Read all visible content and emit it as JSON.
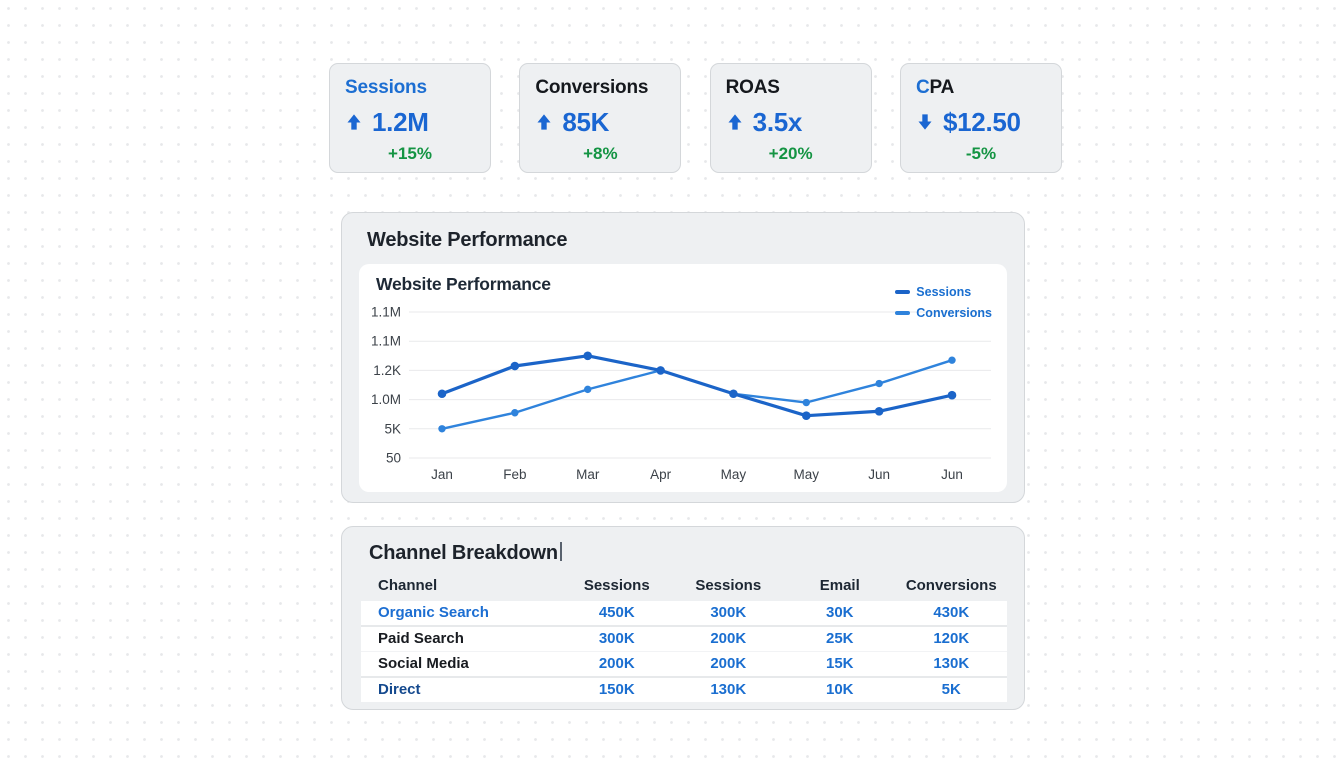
{
  "colors": {
    "accent_blue": "#1c6ed2",
    "kpi_value_blue": "#1a66d2",
    "delta_green": "#149443",
    "dark_text": "#15181d",
    "legend_text_blue": "#1a6fd0",
    "table_value_blue": "#1a6ed0"
  },
  "kpi_cards": [
    {
      "title_parts": [
        {
          "text": "Sessions",
          "color": "#1c6ed2"
        }
      ],
      "arrow": "up",
      "value": "1.2M",
      "delta": "+15%"
    },
    {
      "title_parts": [
        {
          "text": "Conversions",
          "color": "#15181d"
        }
      ],
      "arrow": "up",
      "value": "85K",
      "delta": "+8%"
    },
    {
      "title_parts": [
        {
          "text": "ROAS",
          "color": "#15181d"
        }
      ],
      "arrow": "up",
      "value": "3.5x",
      "delta": "+20%"
    },
    {
      "title_parts": [
        {
          "text": "C",
          "color": "#1c6ed2"
        },
        {
          "text": "PA",
          "color": "#15181d"
        }
      ],
      "arrow": "down",
      "value": "$12.50",
      "delta": "-5%"
    }
  ],
  "performance_section": {
    "title": "Website Performance"
  },
  "chart_data": {
    "type": "line",
    "title": "Website Performance",
    "x": [
      "Jan",
      "Feb",
      "Mar",
      "Apr",
      "May",
      "May",
      "Jun",
      "Jun"
    ],
    "y_tick_labels": [
      "1.1M",
      "1.1M",
      "1.2K",
      "1.0M",
      "5K",
      "50"
    ],
    "value_range": [
      0,
      100
    ],
    "grid": true,
    "legend_position": "top-right",
    "series": [
      {
        "name": "Sessions",
        "color": "#1b64c8",
        "line_width": 3.2,
        "values": [
          44,
          63,
          70,
          60,
          44,
          29,
          32,
          43
        ]
      },
      {
        "name": "Conversions",
        "color": "#2f83dc",
        "line_width": 2.4,
        "values": [
          20,
          31,
          47,
          60,
          44,
          38,
          51,
          67
        ]
      }
    ]
  },
  "breakdown_section": {
    "title": "Channel Breakdown"
  },
  "table": {
    "headers": [
      "Channel",
      "Sessions",
      "Sessions",
      "Email",
      "Conversions"
    ],
    "rows": [
      {
        "channel": "Organic Search",
        "channel_color": "#1c6ed2",
        "values": [
          "450K",
          "300K",
          "30K",
          "430K"
        ]
      },
      {
        "channel": "Paid Search",
        "channel_color": "#181b20",
        "values": [
          "300K",
          "200K",
          "25K",
          "120K"
        ]
      },
      {
        "channel": "Social Media",
        "channel_color": "#181b20",
        "values": [
          "200K",
          "200K",
          "15K",
          "130K"
        ]
      },
      {
        "channel": "Direct",
        "channel_color": "#14498e",
        "values": [
          "150K",
          "130K",
          "10K",
          "5K"
        ]
      }
    ]
  }
}
